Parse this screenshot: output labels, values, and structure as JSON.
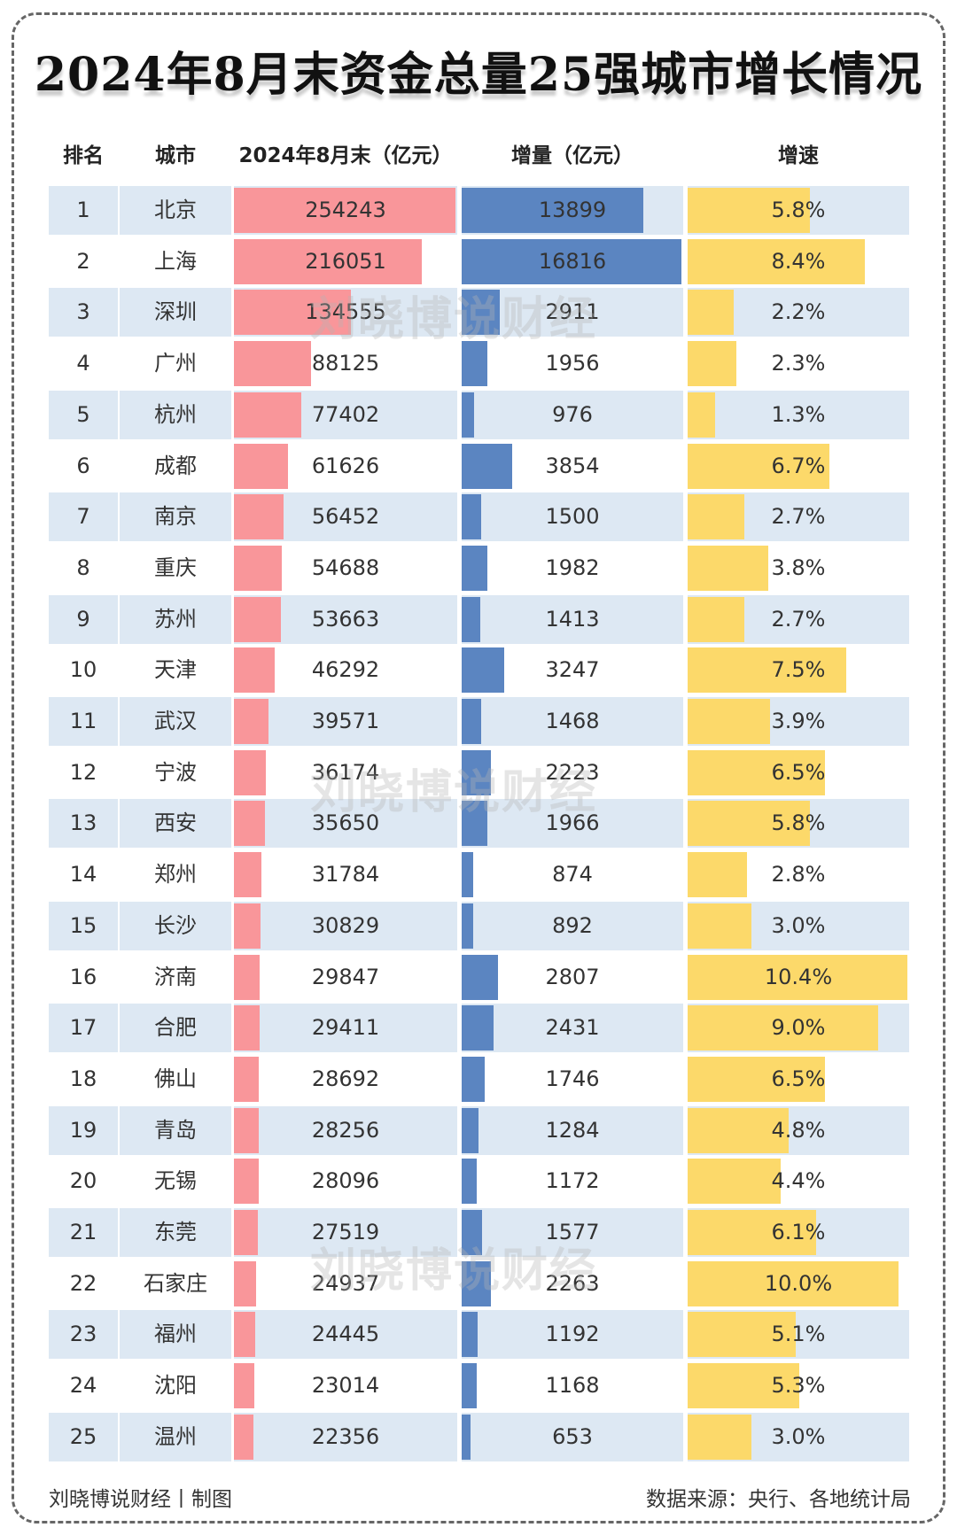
{
  "title": "2024年8月末资金总量25强城市增长情况",
  "watermark": "刘晓博说财经",
  "footer": {
    "left": "刘晓博说财经丨制图",
    "right": "数据来源：央行、各地统计局"
  },
  "colors": {
    "row_alt": "#dde8f3",
    "total_bar": "#f9969a",
    "increase_bar": "#5b85c1",
    "growth_bar": "#fcd96a"
  },
  "chart_data": {
    "type": "table",
    "title": "2024年8月末资金总量25强城市增长情况",
    "columns": [
      "排名",
      "城市",
      "2024年8月末（亿元）",
      "增量（亿元）",
      "增速"
    ],
    "rows": [
      {
        "rank": "1",
        "city": "北京",
        "total": 254243,
        "increase": 13899,
        "growth": "5.8%"
      },
      {
        "rank": "2",
        "city": "上海",
        "total": 216051,
        "increase": 16816,
        "growth": "8.4%"
      },
      {
        "rank": "3",
        "city": "深圳",
        "total": 134555,
        "increase": 2911,
        "growth": "2.2%"
      },
      {
        "rank": "4",
        "city": "广州",
        "total": 88125,
        "increase": 1956,
        "growth": "2.3%"
      },
      {
        "rank": "5",
        "city": "杭州",
        "total": 77402,
        "increase": 976,
        "growth": "1.3%"
      },
      {
        "rank": "6",
        "city": "成都",
        "total": 61626,
        "increase": 3854,
        "growth": "6.7%"
      },
      {
        "rank": "7",
        "city": "南京",
        "total": 56452,
        "increase": 1500,
        "growth": "2.7%"
      },
      {
        "rank": "8",
        "city": "重庆",
        "total": 54688,
        "increase": 1982,
        "growth": "3.8%"
      },
      {
        "rank": "9",
        "city": "苏州",
        "total": 53663,
        "increase": 1413,
        "growth": "2.7%"
      },
      {
        "rank": "10",
        "city": "天津",
        "total": 46292,
        "increase": 3247,
        "growth": "7.5%"
      },
      {
        "rank": "11",
        "city": "武汉",
        "total": 39571,
        "increase": 1468,
        "growth": "3.9%"
      },
      {
        "rank": "12",
        "city": "宁波",
        "total": 36174,
        "increase": 2223,
        "growth": "6.5%"
      },
      {
        "rank": "13",
        "city": "西安",
        "total": 35650,
        "increase": 1966,
        "growth": "5.8%"
      },
      {
        "rank": "14",
        "city": "郑州",
        "total": 31784,
        "increase": 874,
        "growth": "2.8%"
      },
      {
        "rank": "15",
        "city": "长沙",
        "total": 30829,
        "increase": 892,
        "growth": "3.0%"
      },
      {
        "rank": "16",
        "city": "济南",
        "total": 29847,
        "increase": 2807,
        "growth": "10.4%"
      },
      {
        "rank": "17",
        "city": "合肥",
        "total": 29411,
        "increase": 2431,
        "growth": "9.0%"
      },
      {
        "rank": "18",
        "city": "佛山",
        "total": 28692,
        "increase": 1746,
        "growth": "6.5%"
      },
      {
        "rank": "19",
        "city": "青岛",
        "total": 28256,
        "increase": 1284,
        "growth": "4.8%"
      },
      {
        "rank": "20",
        "city": "无锡",
        "total": 28096,
        "increase": 1172,
        "growth": "4.4%"
      },
      {
        "rank": "21",
        "city": "东莞",
        "total": 27519,
        "increase": 1577,
        "growth": "6.1%"
      },
      {
        "rank": "22",
        "city": "石家庄",
        "total": 24937,
        "increase": 2263,
        "growth": "10.0%"
      },
      {
        "rank": "23",
        "city": "福州",
        "total": 24445,
        "increase": 1192,
        "growth": "5.1%"
      },
      {
        "rank": "24",
        "city": "沈阳",
        "total": 23014,
        "increase": 1168,
        "growth": "5.3%"
      },
      {
        "rank": "25",
        "city": "温州",
        "total": 22356,
        "increase": 653,
        "growth": "3.0%"
      }
    ]
  }
}
